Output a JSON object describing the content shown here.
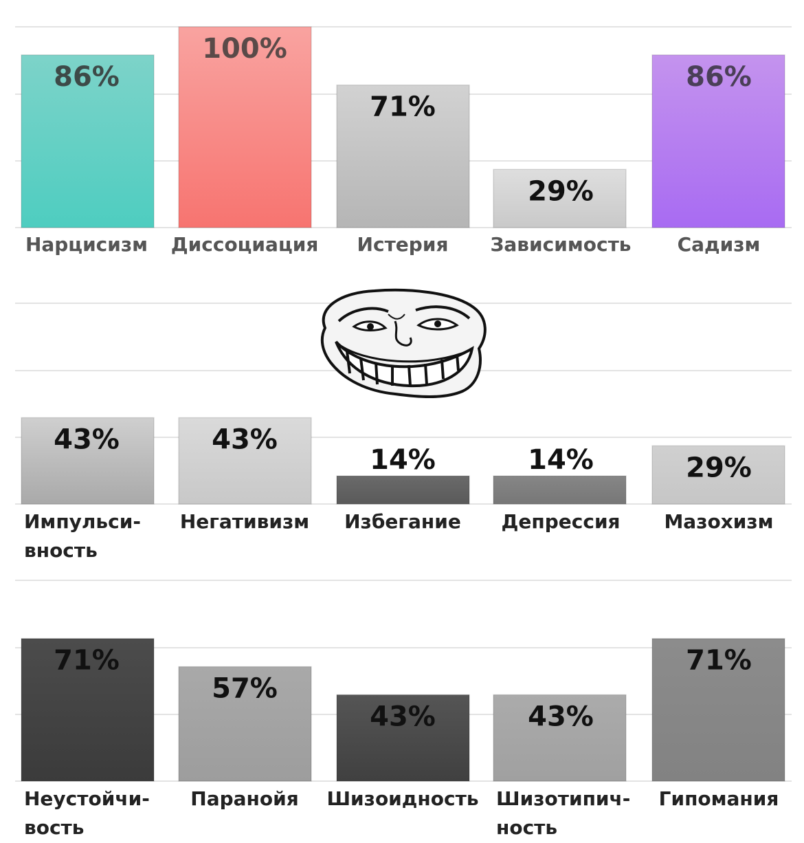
{
  "chart_data": [
    {
      "type": "bar",
      "categories": [
        {
          "lines": [
            "Нарцисизм"
          ]
        },
        {
          "lines": [
            "Диссоциация"
          ]
        },
        {
          "lines": [
            "Истерия"
          ]
        },
        {
          "lines": [
            "Зависимость"
          ]
        },
        {
          "lines": [
            "Садизм"
          ]
        }
      ],
      "values": [
        86,
        100,
        71,
        29,
        86
      ],
      "value_labels": [
        "86%",
        "100%",
        "71%",
        "29%",
        "86%"
      ],
      "ylim": [
        0,
        100
      ],
      "grid": true,
      "colors": [
        {
          "top": "#7dd3c9",
          "bottom": "#4ecdc0",
          "text": "#3d4a48"
        },
        {
          "top": "#f9a3a0",
          "bottom": "#f77470",
          "text": "#5a4a48"
        },
        {
          "top": "#d2d2d2",
          "bottom": "#b5b5b5",
          "text": "#111111"
        },
        {
          "top": "#dedede",
          "bottom": "#c9c9c9",
          "text": "#111111"
        },
        {
          "top": "#c493ee",
          "bottom": "#a86bf2",
          "text": "#4a3f57"
        }
      ],
      "label_color": "#555555"
    },
    {
      "type": "bar",
      "categories": [
        {
          "lines": [
            "Импульси-",
            "вность"
          ]
        },
        {
          "lines": [
            "Негативизм"
          ]
        },
        {
          "lines": [
            "Избегание"
          ]
        },
        {
          "lines": [
            "Депрессия"
          ]
        },
        {
          "lines": [
            "Мазохизм"
          ]
        }
      ],
      "values": [
        43,
        43,
        14,
        14,
        29
      ],
      "value_labels": [
        "43%",
        "43%",
        "14%",
        "14%",
        "29%"
      ],
      "ylim": [
        0,
        100
      ],
      "grid": true,
      "colors": [
        {
          "top": "#cfcfcf",
          "bottom": "#a9a9a9",
          "text": "#111111"
        },
        {
          "top": "#dadada",
          "bottom": "#c8c8c8",
          "text": "#111111"
        },
        {
          "top": "#6a6a6a",
          "bottom": "#5a5a5a",
          "text": "#111111"
        },
        {
          "top": "#868686",
          "bottom": "#777777",
          "text": "#111111"
        },
        {
          "top": "#d0d0d0",
          "bottom": "#c6c6c6",
          "text": "#111111"
        }
      ],
      "label_color": "#222222"
    },
    {
      "type": "bar",
      "categories": [
        {
          "lines": [
            "Неустойчи-",
            "вость"
          ]
        },
        {
          "lines": [
            "Паранойя"
          ]
        },
        {
          "lines": [
            "Шизоидность"
          ]
        },
        {
          "lines": [
            "Шизотипич-",
            "ность"
          ]
        },
        {
          "lines": [
            "Гипомания"
          ]
        }
      ],
      "values": [
        71,
        57,
        43,
        43,
        71
      ],
      "value_labels": [
        "71%",
        "57%",
        "43%",
        "43%",
        "71%"
      ],
      "ylim": [
        0,
        100
      ],
      "grid": true,
      "colors": [
        {
          "top": "#4c4c4c",
          "bottom": "#3b3b3b",
          "text": "#111111"
        },
        {
          "top": "#a9a9a9",
          "bottom": "#9d9d9d",
          "text": "#111111"
        },
        {
          "top": "#555555",
          "bottom": "#404040",
          "text": "#111111"
        },
        {
          "top": "#ababab",
          "bottom": "#a0a0a0",
          "text": "#111111"
        },
        {
          "top": "#8c8c8c",
          "bottom": "#828282",
          "text": "#111111"
        }
      ],
      "label_color": "#222222"
    }
  ],
  "icons": {
    "troll_face": "trollface-icon"
  }
}
